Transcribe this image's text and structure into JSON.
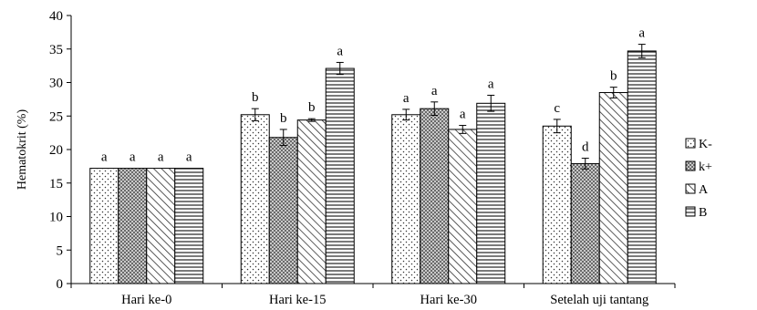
{
  "chart_data": {
    "type": "bar",
    "title": "",
    "xlabel": "",
    "ylabel": "Hematokrit (%)",
    "ylim": [
      0,
      40
    ],
    "yticks": [
      0,
      5,
      10,
      15,
      20,
      25,
      30,
      35,
      40
    ],
    "grid": false,
    "legend_position": "right",
    "categories": [
      "Hari ke-0",
      "Hari ke-15",
      "Hari ke-30",
      "Setelah uji tantang"
    ],
    "series": [
      {
        "name": "K-",
        "pattern": "dots",
        "values": [
          17.2,
          25.2,
          25.2,
          23.5
        ],
        "errors": [
          0,
          0.9,
          0.8,
          1.0
        ],
        "labels": [
          "a",
          "b",
          "a",
          "c"
        ]
      },
      {
        "name": "k+",
        "pattern": "crosshatch",
        "values": [
          17.2,
          21.8,
          26.1,
          17.9
        ],
        "errors": [
          0,
          1.2,
          1.0,
          0.8
        ],
        "labels": [
          "a",
          "b",
          "a",
          "d"
        ]
      },
      {
        "name": "A",
        "pattern": "diagonal",
        "values": [
          17.2,
          24.4,
          23.0,
          28.5
        ],
        "errors": [
          0,
          0.2,
          0.6,
          0.8
        ],
        "labels": [
          "a",
          "b",
          "a",
          "b"
        ]
      },
      {
        "name": "B",
        "pattern": "horizontal",
        "values": [
          17.2,
          32.1,
          26.9,
          34.7
        ],
        "errors": [
          0,
          0.9,
          1.2,
          1.0
        ],
        "labels": [
          "a",
          "a",
          "a",
          "a"
        ]
      }
    ]
  }
}
